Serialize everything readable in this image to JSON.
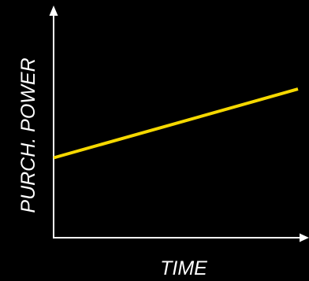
{
  "chart_data": {
    "type": "line",
    "xlabel": "TIME",
    "ylabel": "PURCH. POWER",
    "xlim": [
      0,
      100
    ],
    "ylim": [
      0,
      100
    ],
    "grid": false,
    "series": [
      {
        "x": [
          0,
          100
        ],
        "y": [
          36,
          67
        ]
      }
    ]
  },
  "colors": {
    "background": "#000000",
    "axes": "#ffffff",
    "line": "#f5d800",
    "text": "#ffffff"
  }
}
